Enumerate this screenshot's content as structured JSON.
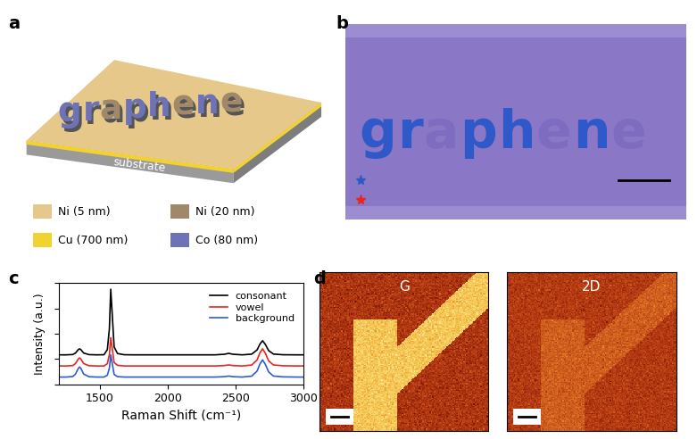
{
  "panel_labels": [
    "a",
    "b",
    "c",
    "d"
  ],
  "schematic": {
    "word": "graphene",
    "substrate": "substrate",
    "layers": [
      {
        "label": "Ni (5 nm)",
        "color": "#e6c98a"
      },
      {
        "label": "Ni (20 nm)",
        "color": "#a08868"
      },
      {
        "label": "Cu (700 nm)",
        "color": "#f2d230"
      },
      {
        "label": "Co (80 nm)",
        "color": "#6e72b6"
      }
    ]
  },
  "optical_image": {
    "word": "graphene"
  },
  "chart_data": {
    "type": "line",
    "x_label": "Raman Shift (cm⁻¹)",
    "y_label": "Intensity (a.u.)",
    "x": [
      1200,
      1250,
      1300,
      1320,
      1340,
      1350,
      1360,
      1380,
      1420,
      1480,
      1530,
      1555,
      1570,
      1580,
      1590,
      1605,
      1630,
      1680,
      1750,
      1850,
      1950,
      2050,
      2150,
      2250,
      2350,
      2420,
      2450,
      2480,
      2550,
      2620,
      2660,
      2680,
      2700,
      2720,
      2745,
      2780,
      2850,
      2950,
      3000
    ],
    "series": [
      {
        "name": "consonant",
        "color": "#000000",
        "values": [
          0.29,
          0.29,
          0.293,
          0.308,
          0.341,
          0.35,
          0.341,
          0.308,
          0.292,
          0.29,
          0.291,
          0.342,
          0.55,
          0.94,
          0.713,
          0.368,
          0.303,
          0.291,
          0.29,
          0.29,
          0.29,
          0.29,
          0.29,
          0.29,
          0.29,
          0.296,
          0.305,
          0.296,
          0.29,
          0.297,
          0.339,
          0.395,
          0.43,
          0.395,
          0.332,
          0.298,
          0.291,
          0.29,
          0.29
        ]
      },
      {
        "name": "vowel",
        "color": "#e8251f",
        "values": [
          0.18,
          0.18,
          0.184,
          0.204,
          0.248,
          0.26,
          0.248,
          0.204,
          0.182,
          0.18,
          0.18,
          0.202,
          0.292,
          0.46,
          0.362,
          0.214,
          0.186,
          0.18,
          0.18,
          0.18,
          0.18,
          0.18,
          0.18,
          0.18,
          0.18,
          0.184,
          0.19,
          0.184,
          0.18,
          0.189,
          0.24,
          0.308,
          0.35,
          0.308,
          0.231,
          0.19,
          0.182,
          0.18,
          0.18
        ]
      },
      {
        "name": "background",
        "color": "#2d5bd6",
        "values": [
          0.07,
          0.07,
          0.075,
          0.1,
          0.155,
          0.17,
          0.155,
          0.1,
          0.073,
          0.07,
          0.07,
          0.088,
          0.158,
          0.29,
          0.213,
          0.096,
          0.074,
          0.07,
          0.07,
          0.07,
          0.07,
          0.07,
          0.07,
          0.07,
          0.07,
          0.074,
          0.08,
          0.074,
          0.07,
          0.079,
          0.13,
          0.198,
          0.24,
          0.198,
          0.121,
          0.08,
          0.072,
          0.07,
          0.07
        ]
      }
    ],
    "xlim": [
      1200,
      3000
    ],
    "xticks": [
      1500,
      2000,
      2500,
      3000
    ],
    "ylim": [
      0,
      1
    ],
    "yticks": [
      0,
      0.25,
      0.5,
      0.75,
      1
    ],
    "tick_labels": "x",
    "legend": "upper right"
  },
  "raman_maps": {
    "titles": [
      "G",
      "2D"
    ]
  }
}
